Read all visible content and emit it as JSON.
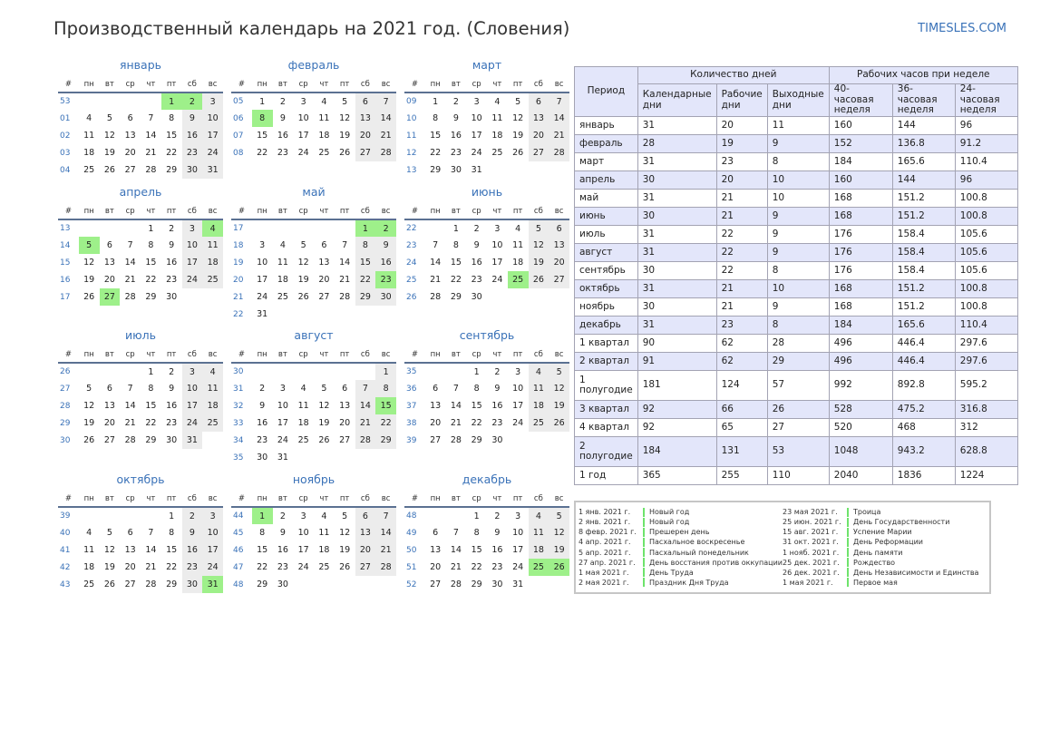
{
  "title": "Производственный календарь на 2021 год. (Словения)",
  "site": "TIMESLES.COM",
  "colors": {
    "accent": "#3a72b8",
    "holiday": "#9ef08a",
    "weekend": "#ececec",
    "header_rule": "#5b7192",
    "table_header": "#e3e6fa"
  },
  "weekday_headers": [
    "#",
    "пн",
    "вт",
    "ср",
    "чт",
    "пт",
    "сб",
    "вс"
  ],
  "months": [
    {
      "name": "январь",
      "weeks": [
        {
          "n": "53",
          "d": [
            "",
            "",
            "",
            "",
            "1",
            "2",
            "3"
          ],
          "h": [
            4,
            5
          ]
        },
        {
          "n": "01",
          "d": [
            "4",
            "5",
            "6",
            "7",
            "8",
            "9",
            "10"
          ],
          "h": []
        },
        {
          "n": "02",
          "d": [
            "11",
            "12",
            "13",
            "14",
            "15",
            "16",
            "17"
          ],
          "h": []
        },
        {
          "n": "03",
          "d": [
            "18",
            "19",
            "20",
            "21",
            "22",
            "23",
            "24"
          ],
          "h": []
        },
        {
          "n": "04",
          "d": [
            "25",
            "26",
            "27",
            "28",
            "29",
            "30",
            "31"
          ],
          "h": []
        }
      ]
    },
    {
      "name": "февраль",
      "weeks": [
        {
          "n": "05",
          "d": [
            "1",
            "2",
            "3",
            "4",
            "5",
            "6",
            "7"
          ],
          "h": []
        },
        {
          "n": "06",
          "d": [
            "8",
            "9",
            "10",
            "11",
            "12",
            "13",
            "14"
          ],
          "h": [
            0
          ]
        },
        {
          "n": "07",
          "d": [
            "15",
            "16",
            "17",
            "18",
            "19",
            "20",
            "21"
          ],
          "h": []
        },
        {
          "n": "08",
          "d": [
            "22",
            "23",
            "24",
            "25",
            "26",
            "27",
            "28"
          ],
          "h": []
        }
      ]
    },
    {
      "name": "март",
      "weeks": [
        {
          "n": "09",
          "d": [
            "1",
            "2",
            "3",
            "4",
            "5",
            "6",
            "7"
          ],
          "h": []
        },
        {
          "n": "10",
          "d": [
            "8",
            "9",
            "10",
            "11",
            "12",
            "13",
            "14"
          ],
          "h": []
        },
        {
          "n": "11",
          "d": [
            "15",
            "16",
            "17",
            "18",
            "19",
            "20",
            "21"
          ],
          "h": []
        },
        {
          "n": "12",
          "d": [
            "22",
            "23",
            "24",
            "25",
            "26",
            "27",
            "28"
          ],
          "h": []
        },
        {
          "n": "13",
          "d": [
            "29",
            "30",
            "31",
            "",
            "",
            "",
            ""
          ],
          "h": []
        }
      ]
    },
    {
      "name": "апрель",
      "weeks": [
        {
          "n": "13",
          "d": [
            "",
            "",
            "",
            "1",
            "2",
            "3",
            "4"
          ],
          "h": [
            6
          ]
        },
        {
          "n": "14",
          "d": [
            "5",
            "6",
            "7",
            "8",
            "9",
            "10",
            "11"
          ],
          "h": [
            0
          ]
        },
        {
          "n": "15",
          "d": [
            "12",
            "13",
            "14",
            "15",
            "16",
            "17",
            "18"
          ],
          "h": []
        },
        {
          "n": "16",
          "d": [
            "19",
            "20",
            "21",
            "22",
            "23",
            "24",
            "25"
          ],
          "h": []
        },
        {
          "n": "17",
          "d": [
            "26",
            "27",
            "28",
            "29",
            "30",
            "",
            ""
          ],
          "h": [
            1
          ]
        }
      ]
    },
    {
      "name": "май",
      "weeks": [
        {
          "n": "17",
          "d": [
            "",
            "",
            "",
            "",
            "",
            "1",
            "2"
          ],
          "h": [
            5,
            6
          ]
        },
        {
          "n": "18",
          "d": [
            "3",
            "4",
            "5",
            "6",
            "7",
            "8",
            "9"
          ],
          "h": []
        },
        {
          "n": "19",
          "d": [
            "10",
            "11",
            "12",
            "13",
            "14",
            "15",
            "16"
          ],
          "h": []
        },
        {
          "n": "20",
          "d": [
            "17",
            "18",
            "19",
            "20",
            "21",
            "22",
            "23"
          ],
          "h": [
            6
          ]
        },
        {
          "n": "21",
          "d": [
            "24",
            "25",
            "26",
            "27",
            "28",
            "29",
            "30"
          ],
          "h": []
        },
        {
          "n": "22",
          "d": [
            "31",
            "",
            "",
            "",
            "",
            "",
            ""
          ],
          "h": []
        }
      ]
    },
    {
      "name": "июнь",
      "weeks": [
        {
          "n": "22",
          "d": [
            "",
            "1",
            "2",
            "3",
            "4",
            "5",
            "6"
          ],
          "h": []
        },
        {
          "n": "23",
          "d": [
            "7",
            "8",
            "9",
            "10",
            "11",
            "12",
            "13"
          ],
          "h": []
        },
        {
          "n": "24",
          "d": [
            "14",
            "15",
            "16",
            "17",
            "18",
            "19",
            "20"
          ],
          "h": []
        },
        {
          "n": "25",
          "d": [
            "21",
            "22",
            "23",
            "24",
            "25",
            "26",
            "27"
          ],
          "h": [
            4
          ]
        },
        {
          "n": "26",
          "d": [
            "28",
            "29",
            "30",
            "",
            "",
            "",
            ""
          ],
          "h": []
        }
      ]
    },
    {
      "name": "июль",
      "weeks": [
        {
          "n": "26",
          "d": [
            "",
            "",
            "",
            "1",
            "2",
            "3",
            "4"
          ],
          "h": []
        },
        {
          "n": "27",
          "d": [
            "5",
            "6",
            "7",
            "8",
            "9",
            "10",
            "11"
          ],
          "h": []
        },
        {
          "n": "28",
          "d": [
            "12",
            "13",
            "14",
            "15",
            "16",
            "17",
            "18"
          ],
          "h": []
        },
        {
          "n": "29",
          "d": [
            "19",
            "20",
            "21",
            "22",
            "23",
            "24",
            "25"
          ],
          "h": []
        },
        {
          "n": "30",
          "d": [
            "26",
            "27",
            "28",
            "29",
            "30",
            "31",
            ""
          ],
          "h": []
        }
      ]
    },
    {
      "name": "август",
      "weeks": [
        {
          "n": "30",
          "d": [
            "",
            "",
            "",
            "",
            "",
            "",
            "1"
          ],
          "h": []
        },
        {
          "n": "31",
          "d": [
            "2",
            "3",
            "4",
            "5",
            "6",
            "7",
            "8"
          ],
          "h": []
        },
        {
          "n": "32",
          "d": [
            "9",
            "10",
            "11",
            "12",
            "13",
            "14",
            "15"
          ],
          "h": [
            6
          ]
        },
        {
          "n": "33",
          "d": [
            "16",
            "17",
            "18",
            "19",
            "20",
            "21",
            "22"
          ],
          "h": []
        },
        {
          "n": "34",
          "d": [
            "23",
            "24",
            "25",
            "26",
            "27",
            "28",
            "29"
          ],
          "h": []
        },
        {
          "n": "35",
          "d": [
            "30",
            "31",
            "",
            "",
            "",
            "",
            ""
          ],
          "h": []
        }
      ]
    },
    {
      "name": "сентябрь",
      "weeks": [
        {
          "n": "35",
          "d": [
            "",
            "",
            "1",
            "2",
            "3",
            "4",
            "5"
          ],
          "h": []
        },
        {
          "n": "36",
          "d": [
            "6",
            "7",
            "8",
            "9",
            "10",
            "11",
            "12"
          ],
          "h": []
        },
        {
          "n": "37",
          "d": [
            "13",
            "14",
            "15",
            "16",
            "17",
            "18",
            "19"
          ],
          "h": []
        },
        {
          "n": "38",
          "d": [
            "20",
            "21",
            "22",
            "23",
            "24",
            "25",
            "26"
          ],
          "h": []
        },
        {
          "n": "39",
          "d": [
            "27",
            "28",
            "29",
            "30",
            "",
            "",
            ""
          ],
          "h": []
        }
      ]
    },
    {
      "name": "октябрь",
      "weeks": [
        {
          "n": "39",
          "d": [
            "",
            "",
            "",
            "",
            "1",
            "2",
            "3"
          ],
          "h": []
        },
        {
          "n": "40",
          "d": [
            "4",
            "5",
            "6",
            "7",
            "8",
            "9",
            "10"
          ],
          "h": []
        },
        {
          "n": "41",
          "d": [
            "11",
            "12",
            "13",
            "14",
            "15",
            "16",
            "17"
          ],
          "h": []
        },
        {
          "n": "42",
          "d": [
            "18",
            "19",
            "20",
            "21",
            "22",
            "23",
            "24"
          ],
          "h": []
        },
        {
          "n": "43",
          "d": [
            "25",
            "26",
            "27",
            "28",
            "29",
            "30",
            "31"
          ],
          "h": [
            6
          ]
        }
      ]
    },
    {
      "name": "ноябрь",
      "weeks": [
        {
          "n": "44",
          "d": [
            "1",
            "2",
            "3",
            "4",
            "5",
            "6",
            "7"
          ],
          "h": [
            0
          ]
        },
        {
          "n": "45",
          "d": [
            "8",
            "9",
            "10",
            "11",
            "12",
            "13",
            "14"
          ],
          "h": []
        },
        {
          "n": "46",
          "d": [
            "15",
            "16",
            "17",
            "18",
            "19",
            "20",
            "21"
          ],
          "h": []
        },
        {
          "n": "47",
          "d": [
            "22",
            "23",
            "24",
            "25",
            "26",
            "27",
            "28"
          ],
          "h": []
        },
        {
          "n": "48",
          "d": [
            "29",
            "30",
            "",
            "",
            "",
            "",
            ""
          ],
          "h": []
        }
      ]
    },
    {
      "name": "декабрь",
      "weeks": [
        {
          "n": "48",
          "d": [
            "",
            "",
            "1",
            "2",
            "3",
            "4",
            "5"
          ],
          "h": []
        },
        {
          "n": "49",
          "d": [
            "6",
            "7",
            "8",
            "9",
            "10",
            "11",
            "12"
          ],
          "h": []
        },
        {
          "n": "50",
          "d": [
            "13",
            "14",
            "15",
            "16",
            "17",
            "18",
            "19"
          ],
          "h": []
        },
        {
          "n": "51",
          "d": [
            "20",
            "21",
            "22",
            "23",
            "24",
            "25",
            "26"
          ],
          "h": [
            5,
            6
          ]
        },
        {
          "n": "52",
          "d": [
            "27",
            "28",
            "29",
            "30",
            "31",
            "",
            ""
          ],
          "h": []
        }
      ]
    }
  ],
  "stats": {
    "period_label": "Период",
    "group_days": "Количество дней",
    "group_hours": "Рабочих часов при неделе",
    "col_labels": [
      "Календарные дни",
      "Рабочие дни",
      "Выходные дни",
      "40-часовая неделя",
      "36-часовая неделя",
      "24-часовая неделя"
    ],
    "rows": [
      [
        "январь",
        "31",
        "20",
        "11",
        "160",
        "144",
        "96"
      ],
      [
        "февраль",
        "28",
        "19",
        "9",
        "152",
        "136.8",
        "91.2"
      ],
      [
        "март",
        "31",
        "23",
        "8",
        "184",
        "165.6",
        "110.4"
      ],
      [
        "апрель",
        "30",
        "20",
        "10",
        "160",
        "144",
        "96"
      ],
      [
        "май",
        "31",
        "21",
        "10",
        "168",
        "151.2",
        "100.8"
      ],
      [
        "июнь",
        "30",
        "21",
        "9",
        "168",
        "151.2",
        "100.8"
      ],
      [
        "июль",
        "31",
        "22",
        "9",
        "176",
        "158.4",
        "105.6"
      ],
      [
        "август",
        "31",
        "22",
        "9",
        "176",
        "158.4",
        "105.6"
      ],
      [
        "сентябрь",
        "30",
        "22",
        "8",
        "176",
        "158.4",
        "105.6"
      ],
      [
        "октябрь",
        "31",
        "21",
        "10",
        "168",
        "151.2",
        "100.8"
      ],
      [
        "ноябрь",
        "30",
        "21",
        "9",
        "168",
        "151.2",
        "100.8"
      ],
      [
        "декабрь",
        "31",
        "23",
        "8",
        "184",
        "165.6",
        "110.4"
      ],
      [
        "1 квартал",
        "90",
        "62",
        "28",
        "496",
        "446.4",
        "297.6"
      ],
      [
        "2 квартал",
        "91",
        "62",
        "29",
        "496",
        "446.4",
        "297.6"
      ],
      [
        "1 полугодие",
        "181",
        "124",
        "57",
        "992",
        "892.8",
        "595.2"
      ],
      [
        "3 квартал",
        "92",
        "66",
        "26",
        "528",
        "475.2",
        "316.8"
      ],
      [
        "4 квартал",
        "92",
        "65",
        "27",
        "520",
        "468",
        "312"
      ],
      [
        "2 полугодие",
        "184",
        "131",
        "53",
        "1048",
        "943.2",
        "628.8"
      ],
      [
        "1 год",
        "365",
        "255",
        "110",
        "2040",
        "1836",
        "1224"
      ]
    ]
  },
  "holidays": {
    "col1": [
      {
        "date": "1 янв. 2021 г.",
        "name": "Новый год"
      },
      {
        "date": "2 янв. 2021 г.",
        "name": "Новый год"
      },
      {
        "date": "8 февр. 2021 г.",
        "name": "Прешерен день"
      },
      {
        "date": "4 апр. 2021 г.",
        "name": "Пасхальное воскресенье"
      },
      {
        "date": "5 апр. 2021 г.",
        "name": "Пасхальный понедельник"
      },
      {
        "date": "27 апр. 2021 г.",
        "name": "День восстания против оккупации"
      },
      {
        "date": "1 мая 2021 г.",
        "name": "День Труда"
      },
      {
        "date": "2 мая 2021 г.",
        "name": "Праздник Дня Труда"
      }
    ],
    "col2": [
      {
        "date": "23 мая 2021 г.",
        "name": "Троица"
      },
      {
        "date": "25 июн. 2021 г.",
        "name": "День Государственности"
      },
      {
        "date": "15 авг. 2021 г.",
        "name": "Успение Марии"
      },
      {
        "date": "31 окт. 2021 г.",
        "name": "День Реформации"
      },
      {
        "date": "1 нояб. 2021 г.",
        "name": "День памяти"
      },
      {
        "date": "25 дек. 2021 г.",
        "name": "Рождество"
      },
      {
        "date": "26 дек. 2021 г.",
        "name": "День Независимости и Единства"
      },
      {
        "date": "1 мая 2021 г.",
        "name": "Первое мая"
      }
    ]
  }
}
